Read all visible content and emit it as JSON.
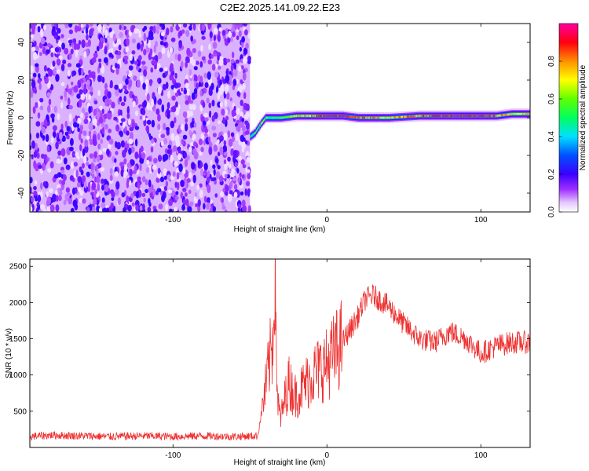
{
  "title": "C2E2.2025.141.09.22.E23",
  "chart_data": [
    {
      "type": "heatmap",
      "xlabel": "Height of straight line (km)",
      "ylabel": "Frequency (Hz)",
      "xlim": [
        -193,
        132
      ],
      "ylim": [
        -50,
        50
      ],
      "x_ticks": [
        -100,
        0,
        100
      ],
      "y_ticks": [
        -40,
        -20,
        0,
        20,
        40
      ],
      "colorbar": {
        "label": "Normalized spectral amplitude",
        "range": [
          0,
          1
        ],
        "ticks": [
          "0.0",
          "0.2",
          "0.4",
          "0.6",
          "0.8"
        ],
        "colormap": "rainbow (white - purple - blue - cyan - green - yellow - red - magenta)"
      },
      "noise_region": {
        "x_range": [
          -193,
          -50
        ],
        "frequency_range": [
          -50,
          50
        ],
        "amplitude": "low"
      },
      "signal_track": {
        "x": [
          -50,
          -47,
          -43,
          -40,
          -35,
          -30,
          -20,
          -10,
          0,
          10,
          20,
          40,
          60,
          80,
          100,
          110,
          120,
          132
        ],
        "frequency_hz": [
          -10,
          -8,
          -3,
          0,
          0,
          0,
          1,
          1,
          1,
          1,
          0,
          0,
          1,
          1,
          1,
          1,
          2,
          2
        ],
        "peak_amplitude": [
          0.4,
          0.5,
          0.6,
          0.55,
          0.5,
          0.55,
          0.7,
          0.8,
          0.9,
          0.95,
          0.85,
          0.7,
          0.85,
          0.95,
          0.95,
          0.8,
          0.7,
          0.7
        ]
      }
    },
    {
      "type": "line",
      "xlabel": "Height of straight line (km)",
      "ylabel": "SNR (10 * v/v)",
      "xlim": [
        -193,
        132
      ],
      "ylim": [
        0,
        2600
      ],
      "x_ticks": [
        -100,
        0,
        100
      ],
      "y_ticks": [
        500,
        1000,
        1500,
        2000,
        2500
      ],
      "color": "#ee3333",
      "x": [
        -193,
        -180,
        -160,
        -140,
        -120,
        -100,
        -80,
        -60,
        -45,
        -40,
        -35,
        -34,
        -32,
        -30,
        -25,
        -20,
        -10,
        0,
        10,
        20,
        25,
        30,
        40,
        50,
        60,
        70,
        80,
        90,
        100,
        110,
        120,
        132
      ],
      "y": [
        150,
        170,
        160,
        150,
        160,
        150,
        160,
        150,
        160,
        800,
        1500,
        2700,
        600,
        400,
        900,
        700,
        1000,
        1150,
        1450,
        1800,
        2050,
        2100,
        1950,
        1700,
        1500,
        1450,
        1600,
        1500,
        1300,
        1400,
        1450,
        1450
      ]
    }
  ]
}
